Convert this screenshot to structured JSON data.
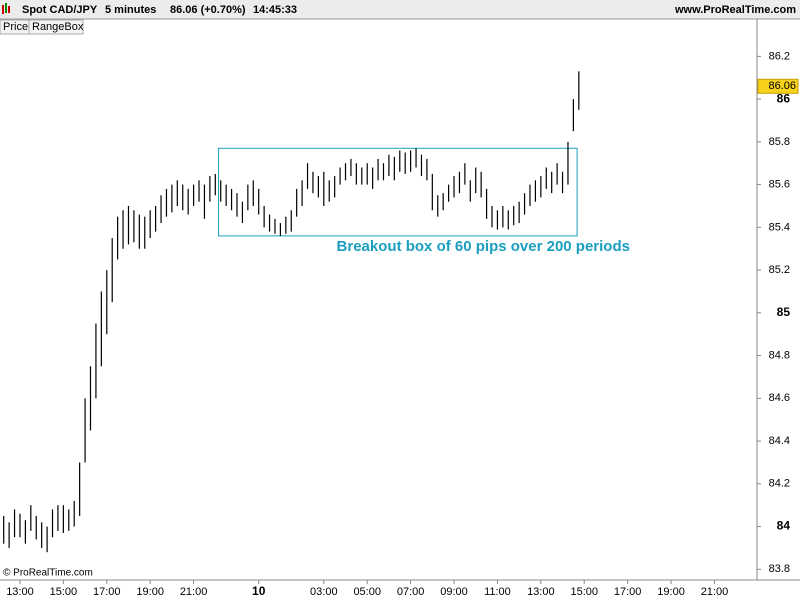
{
  "chart_data": {
    "type": "range",
    "header": {
      "instrument": "Spot CAD/JPY",
      "timeframe": "5 minutes",
      "quote": "86.06 (+0.70%)",
      "time": "14:45:33",
      "site": "www.ProRealTime.com"
    },
    "tabs": [
      "Price",
      "RangeBox"
    ],
    "watermark": "© ProRealTime.com",
    "annotation": "Breakout box of 60 pips over 200 periods",
    "color": "#000000",
    "box": {
      "x": [
        22.15,
        38.67
      ],
      "y": [
        85.36,
        85.77
      ],
      "color": "#1a9fc0"
    },
    "last": 86.06,
    "xlim": [
      12.08,
      46.96
    ],
    "xticks": [
      {
        "value": 13,
        "label": "13:00"
      },
      {
        "value": 15,
        "label": "15:00"
      },
      {
        "value": 17,
        "label": "17:00"
      },
      {
        "value": 19,
        "label": "19:00"
      },
      {
        "value": 21,
        "label": "21:00"
      },
      {
        "value": 24,
        "label": "10"
      },
      {
        "value": 27,
        "label": "03:00"
      },
      {
        "value": 29,
        "label": "05:00"
      },
      {
        "value": 31,
        "label": "07:00"
      },
      {
        "value": 33,
        "label": "09:00"
      },
      {
        "value": 35,
        "label": "11:00"
      },
      {
        "value": 37,
        "label": "13:00"
      },
      {
        "value": 39,
        "label": "15:00"
      },
      {
        "value": 41,
        "label": "17:00"
      },
      {
        "value": 43,
        "label": "19:00"
      },
      {
        "value": 45,
        "label": "21:00"
      }
    ],
    "ylim": [
      83.75,
      86.3
    ],
    "yticks": [
      83.8,
      84,
      84.2,
      84.4,
      84.6,
      84.8,
      85,
      85.2,
      85.4,
      85.6,
      85.8,
      86,
      86.2
    ],
    "x": [
      12.25,
      12.5,
      12.75,
      13,
      13.25,
      13.5,
      13.75,
      14,
      14.25,
      14.5,
      14.75,
      15,
      15.25,
      15.5,
      15.75,
      16,
      16.25,
      16.5,
      16.75,
      17,
      17.25,
      17.5,
      17.75,
      18,
      18.25,
      18.5,
      18.75,
      19,
      19.25,
      19.5,
      19.75,
      20,
      20.25,
      20.5,
      20.75,
      21,
      21.25,
      21.5,
      21.75,
      22,
      22.25,
      22.5,
      22.75,
      23,
      23.25,
      23.5,
      23.75,
      24,
      24.25,
      24.5,
      24.75,
      25,
      25.25,
      25.5,
      25.75,
      26,
      26.25,
      26.5,
      26.75,
      27,
      27.25,
      27.5,
      27.75,
      28,
      28.25,
      28.5,
      28.75,
      29,
      29.25,
      29.5,
      29.75,
      30,
      30.25,
      30.5,
      30.75,
      31,
      31.25,
      31.5,
      31.75,
      32,
      32.25,
      32.5,
      32.75,
      33,
      33.25,
      33.5,
      33.75,
      34,
      34.25,
      34.5,
      34.75,
      35,
      35.25,
      35.5,
      35.75,
      36,
      36.25,
      36.5,
      36.75,
      37,
      37.25,
      37.5,
      37.75,
      38,
      38.25,
      38.5,
      38.75
    ],
    "high": [
      84.05,
      84.02,
      84.08,
      84.06,
      84.03,
      84.1,
      84.05,
      84.02,
      84.0,
      84.08,
      84.1,
      84.1,
      84.08,
      84.12,
      84.3,
      84.6,
      84.75,
      84.95,
      85.1,
      85.2,
      85.35,
      85.45,
      85.48,
      85.5,
      85.48,
      85.46,
      85.45,
      85.48,
      85.5,
      85.55,
      85.58,
      85.6,
      85.62,
      85.6,
      85.58,
      85.6,
      85.62,
      85.6,
      85.64,
      85.65,
      85.62,
      85.6,
      85.58,
      85.56,
      85.52,
      85.6,
      85.62,
      85.58,
      85.5,
      85.46,
      85.44,
      85.42,
      85.45,
      85.48,
      85.58,
      85.62,
      85.7,
      85.66,
      85.64,
      85.66,
      85.62,
      85.64,
      85.68,
      85.7,
      85.72,
      85.7,
      85.68,
      85.7,
      85.68,
      85.72,
      85.7,
      85.74,
      85.73,
      85.76,
      85.75,
      85.76,
      85.77,
      85.74,
      85.72,
      85.65,
      85.55,
      85.56,
      85.6,
      85.64,
      85.66,
      85.7,
      85.62,
      85.68,
      85.66,
      85.58,
      85.5,
      85.48,
      85.5,
      85.48,
      85.5,
      85.52,
      85.56,
      85.6,
      85.62,
      85.64,
      85.68,
      85.66,
      85.7,
      85.66,
      85.8,
      86.0,
      86.13
    ],
    "low": [
      83.92,
      83.9,
      83.95,
      83.95,
      83.92,
      83.98,
      83.94,
      83.9,
      83.88,
      83.95,
      83.98,
      83.97,
      83.98,
      84.0,
      84.05,
      84.3,
      84.45,
      84.6,
      84.75,
      84.9,
      85.05,
      85.25,
      85.3,
      85.32,
      85.33,
      85.3,
      85.3,
      85.35,
      85.38,
      85.42,
      85.45,
      85.47,
      85.5,
      85.48,
      85.46,
      85.5,
      85.52,
      85.44,
      85.52,
      85.55,
      85.52,
      85.5,
      85.48,
      85.45,
      85.42,
      85.48,
      85.5,
      85.46,
      85.4,
      85.38,
      85.37,
      85.36,
      85.37,
      85.38,
      85.45,
      85.5,
      85.58,
      85.56,
      85.54,
      85.5,
      85.52,
      85.54,
      85.6,
      85.62,
      85.64,
      85.6,
      85.6,
      85.6,
      85.58,
      85.62,
      85.62,
      85.64,
      85.62,
      85.66,
      85.65,
      85.66,
      85.68,
      85.64,
      85.62,
      85.48,
      85.45,
      85.48,
      85.52,
      85.54,
      85.56,
      85.6,
      85.52,
      85.56,
      85.54,
      85.44,
      85.4,
      85.39,
      85.4,
      85.39,
      85.41,
      85.42,
      85.46,
      85.5,
      85.52,
      85.54,
      85.58,
      85.56,
      85.6,
      85.56,
      85.6,
      85.85,
      85.95
    ]
  }
}
